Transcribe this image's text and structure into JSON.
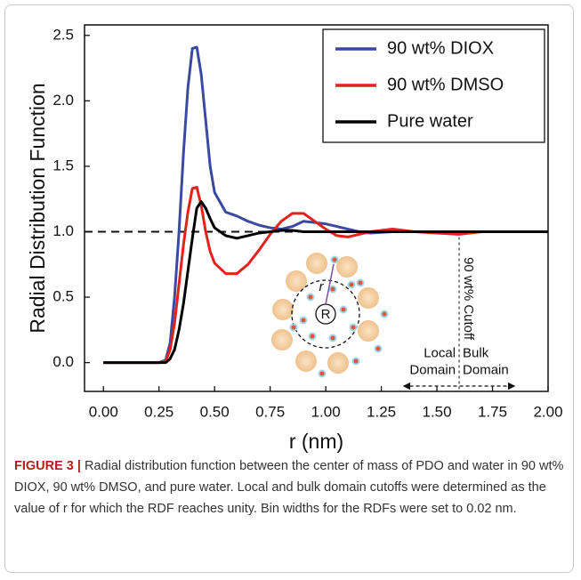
{
  "chart_data": {
    "type": "line",
    "xlabel": "r (nm)",
    "ylabel": "Radial Distribution Function",
    "x": [
      0,
      0.05,
      0.1,
      0.15,
      0.2,
      0.25,
      0.28,
      0.3,
      0.32,
      0.34,
      0.36,
      0.38,
      0.4,
      0.42,
      0.44,
      0.46,
      0.48,
      0.5,
      0.55,
      0.6,
      0.65,
      0.7,
      0.75,
      0.8,
      0.85,
      0.9,
      0.95,
      1.0,
      1.05,
      1.1,
      1.15,
      1.2,
      1.3,
      1.4,
      1.5,
      1.6,
      1.7,
      1.8,
      1.9,
      2.0
    ],
    "series": [
      {
        "name": "90 wt% DIOX",
        "color": "#3a4aa0",
        "values": [
          0,
          0,
          0,
          0,
          0,
          0,
          0.02,
          0.15,
          0.5,
          1.0,
          1.6,
          2.1,
          2.4,
          2.41,
          2.2,
          1.85,
          1.5,
          1.3,
          1.15,
          1.12,
          1.08,
          1.05,
          1.03,
          1.02,
          1.04,
          1.08,
          1.07,
          1.06,
          1.04,
          1.02,
          1.0,
          0.99,
          1.0,
          1.0,
          1.0,
          1.0,
          1.0,
          1.0,
          1.0,
          1.0
        ]
      },
      {
        "name": "90 wt% DMSO",
        "color": "#e2231c",
        "values": [
          0,
          0,
          0,
          0,
          0,
          0,
          0.01,
          0.1,
          0.3,
          0.6,
          0.9,
          1.15,
          1.33,
          1.34,
          1.2,
          1.0,
          0.85,
          0.76,
          0.68,
          0.68,
          0.75,
          0.86,
          0.98,
          1.08,
          1.14,
          1.14,
          1.08,
          1.02,
          0.97,
          0.96,
          0.98,
          1.0,
          1.02,
          1.0,
          0.99,
          0.98,
          1.0,
          1.0,
          1.0,
          1.0
        ]
      },
      {
        "name": "Pure water",
        "color": "#000000",
        "values": [
          0,
          0,
          0,
          0,
          0,
          0,
          0,
          0.03,
          0.1,
          0.25,
          0.45,
          0.7,
          0.95,
          1.18,
          1.23,
          1.18,
          1.1,
          1.03,
          0.97,
          0.95,
          0.97,
          0.99,
          1.0,
          1.01,
          1.01,
          1.0,
          1.0,
          1.0,
          1.0,
          1.0,
          1.0,
          1.0,
          1.0,
          1.0,
          1.0,
          1.0,
          1.0,
          1.0,
          1.0,
          1.0
        ]
      }
    ],
    "xlim": [
      -0.085,
      2.0
    ],
    "ylim": [
      -0.22,
      2.58
    ],
    "xticks": [
      {
        "value": 0,
        "label": "0.00"
      },
      {
        "value": 0.25,
        "label": "0.25"
      },
      {
        "value": 0.5,
        "label": "0.50"
      },
      {
        "value": 0.75,
        "label": "0.75"
      },
      {
        "value": 1,
        "label": "1.00"
      },
      {
        "value": 1.25,
        "label": "1.25"
      },
      {
        "value": 1.5,
        "label": "1.50"
      },
      {
        "value": 1.75,
        "label": "1.75"
      },
      {
        "value": 2,
        "label": "2.00"
      }
    ],
    "yticks": [
      {
        "value": 0,
        "label": "0.0"
      },
      0.5,
      {
        "value": 1,
        "label": "1.0"
      },
      1.5,
      {
        "value": 2,
        "label": "2.0"
      },
      2.5
    ],
    "reference_line": 1,
    "legend": "upper right",
    "annotations": {
      "cutoff_label": "90 wt% Cutoff",
      "cutoff_x": 1.6,
      "local_label": [
        "Local",
        "Domain"
      ],
      "bulk_label": [
        "Bulk",
        "Domain"
      ],
      "arrow_range": [
        1.35,
        1.85
      ],
      "inset_labels": [
        "R",
        "r"
      ]
    }
  },
  "caption": {
    "label": "FIGURE 3 |",
    "text": "Radial distribution function between the center of mass of PDO and water in 90 wt% DIOX, 90 wt% DMSO, and pure water. Local and bulk domain cutoffs were determined as the value of r for which the RDF reaches unity. Bin widths for the RDFs were set to 0.02 nm."
  }
}
